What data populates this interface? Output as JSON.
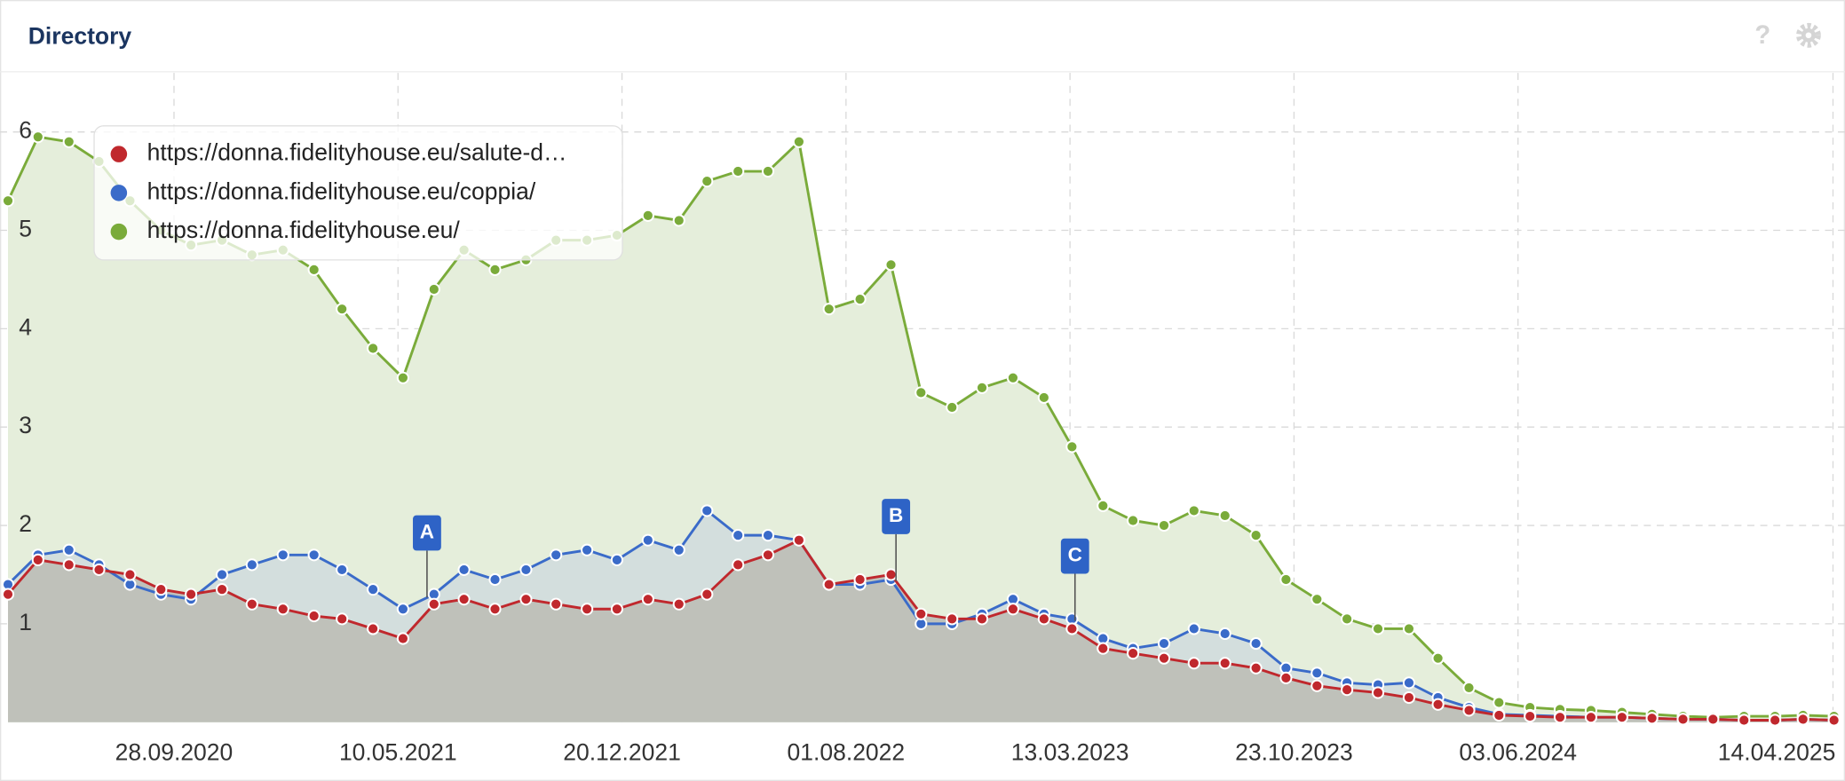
{
  "header": {
    "title": "Directory"
  },
  "chart_data": {
    "type": "area-line",
    "x": [
      "2020-04-15",
      "2020-05-15",
      "2020-06-15",
      "2020-07-15",
      "2020-08-15",
      "2020-09-15",
      "2020-10-15",
      "2020-11-15",
      "2020-12-15",
      "2021-01-15",
      "2021-02-15",
      "2021-03-15",
      "2021-04-15",
      "2021-05-15",
      "2021-06-15",
      "2021-07-15",
      "2021-08-15",
      "2021-09-15",
      "2021-10-15",
      "2021-11-15",
      "2021-12-15",
      "2022-01-15",
      "2022-02-15",
      "2022-03-15",
      "2022-04-15",
      "2022-05-15",
      "2022-06-15",
      "2022-07-15",
      "2022-08-15",
      "2022-09-15",
      "2022-10-15",
      "2022-11-15",
      "2022-12-15",
      "2023-01-15",
      "2023-02-15",
      "2023-03-15",
      "2023-04-15",
      "2023-05-15",
      "2023-06-15",
      "2023-07-15",
      "2023-08-15",
      "2023-09-15",
      "2023-10-15",
      "2023-11-15",
      "2023-12-15",
      "2024-01-15",
      "2024-02-15",
      "2024-03-15",
      "2024-04-15",
      "2024-05-15",
      "2024-06-15",
      "2024-07-15",
      "2024-08-15",
      "2024-09-15",
      "2024-10-15",
      "2024-11-15",
      "2024-12-15",
      "2025-01-15",
      "2025-02-15",
      "2025-03-15",
      "2025-04-15"
    ],
    "series": [
      {
        "name": "https://donna.fidelityhouse.eu/",
        "color": "#7aab3a",
        "fill": "#e5eedb",
        "values": [
          5.3,
          5.95,
          5.9,
          5.7,
          5.3,
          5.0,
          4.85,
          4.9,
          4.75,
          4.8,
          4.6,
          4.2,
          3.8,
          3.5,
          4.4,
          4.8,
          4.6,
          4.7,
          4.9,
          4.9,
          4.95,
          5.15,
          5.1,
          5.5,
          5.6,
          5.6,
          5.9,
          4.2,
          4.3,
          4.65,
          3.35,
          3.2,
          3.4,
          3.5,
          3.3,
          2.8,
          2.2,
          2.05,
          2.0,
          2.15,
          2.1,
          1.9,
          1.45,
          1.25,
          1.05,
          0.95,
          0.95,
          0.65,
          0.35,
          0.2,
          0.15,
          0.13,
          0.12,
          0.1,
          0.08,
          0.06,
          0.05,
          0.06,
          0.06,
          0.07,
          0.06
        ]
      },
      {
        "name": "https://donna.fidelityhouse.eu/coppia/",
        "color": "#3a6bc9",
        "fill": "#d3dedd",
        "values": [
          1.4,
          1.7,
          1.75,
          1.6,
          1.4,
          1.3,
          1.25,
          1.5,
          1.6,
          1.7,
          1.7,
          1.55,
          1.35,
          1.15,
          1.3,
          1.55,
          1.45,
          1.55,
          1.7,
          1.75,
          1.65,
          1.85,
          1.75,
          2.15,
          1.9,
          1.9,
          1.85,
          1.4,
          1.4,
          1.45,
          1.0,
          1.0,
          1.1,
          1.25,
          1.1,
          1.05,
          0.85,
          0.75,
          0.8,
          0.95,
          0.9,
          0.8,
          0.55,
          0.5,
          0.4,
          0.38,
          0.4,
          0.25,
          0.15,
          0.08,
          0.07,
          0.06,
          0.05,
          0.05,
          0.04,
          0.03,
          0.03,
          0.02,
          0.02,
          0.03,
          0.02
        ]
      },
      {
        "name": "https://donna.fidelityhouse.eu/salute-d…",
        "color": "#c0282d",
        "fill": "#bfc1ba",
        "values": [
          1.3,
          1.65,
          1.6,
          1.55,
          1.5,
          1.35,
          1.3,
          1.35,
          1.2,
          1.15,
          1.08,
          1.05,
          0.95,
          0.85,
          1.2,
          1.25,
          1.15,
          1.25,
          1.2,
          1.15,
          1.15,
          1.25,
          1.2,
          1.3,
          1.6,
          1.7,
          1.85,
          1.4,
          1.45,
          1.5,
          1.1,
          1.05,
          1.05,
          1.15,
          1.05,
          0.95,
          0.75,
          0.7,
          0.65,
          0.6,
          0.6,
          0.55,
          0.45,
          0.37,
          0.33,
          0.3,
          0.25,
          0.18,
          0.12,
          0.07,
          0.06,
          0.05,
          0.05,
          0.05,
          0.04,
          0.03,
          0.03,
          0.02,
          0.02,
          0.03,
          0.02
        ]
      }
    ],
    "legend_order": [
      2,
      1,
      0
    ],
    "annotations": [
      {
        "label": "A",
        "x": "2021-06-08"
      },
      {
        "label": "B",
        "x": "2022-09-20"
      },
      {
        "label": "C",
        "x": "2023-03-18"
      }
    ],
    "xlim": [
      "2020-04-07",
      "2025-04-26"
    ],
    "xticks": [
      {
        "value": "2020-09-28",
        "label": "28.09.2020"
      },
      {
        "value": "2021-05-10",
        "label": "10.05.2021"
      },
      {
        "value": "2021-12-20",
        "label": "20.12.2021"
      },
      {
        "value": "2022-08-01",
        "label": "01.08.2022"
      },
      {
        "value": "2023-03-13",
        "label": "13.03.2023"
      },
      {
        "value": "2023-10-23",
        "label": "23.10.2023"
      },
      {
        "value": "2024-06-03",
        "label": "03.06.2024"
      },
      {
        "value": "2025-04-14",
        "label": "14.04.2025"
      }
    ],
    "ylim": [
      0,
      6.6
    ],
    "yticks": [
      1,
      2,
      3,
      4,
      5,
      6
    ],
    "grid": true
  }
}
